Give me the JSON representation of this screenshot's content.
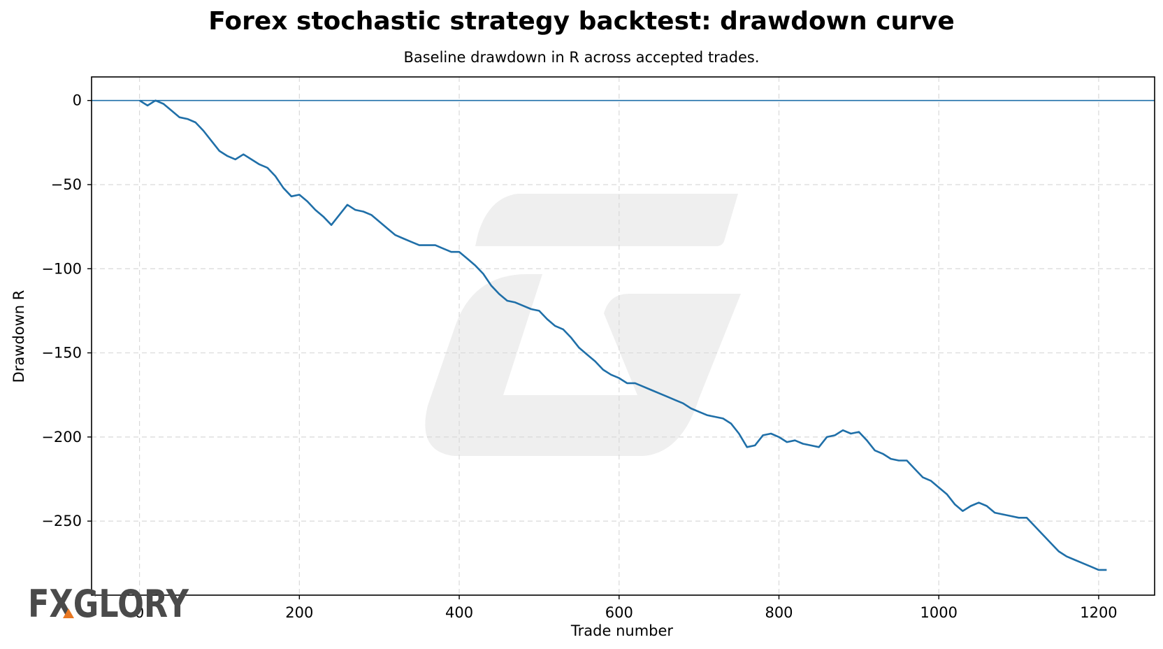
{
  "chart_data": {
    "type": "line",
    "title": "Forex stochastic strategy backtest: drawdown curve",
    "subtitle": "Baseline drawdown in R across accepted trades.",
    "xlabel": "Trade number",
    "ylabel": "Drawdown R",
    "xlim": [
      -60,
      1270
    ],
    "ylim": [
      -294,
      14
    ],
    "xticks": [
      0,
      200,
      400,
      600,
      800,
      1000,
      1200
    ],
    "yticks": [
      0,
      -50,
      -100,
      -150,
      -200,
      -250
    ],
    "ytick_labels": [
      "0",
      "−50",
      "−100",
      "−150",
      "−200",
      "−250"
    ],
    "grid": true,
    "hline_y": 0,
    "colors": {
      "series": "#1f6fa8",
      "grid": "#d9d9d9"
    },
    "series": [
      {
        "x": [
          0,
          10,
          20,
          30,
          40,
          50,
          60,
          70,
          80,
          90,
          100,
          110,
          120,
          130,
          140,
          150,
          160,
          170,
          180,
          190,
          200,
          210,
          220,
          230,
          240,
          250,
          260,
          270,
          280,
          290,
          300,
          310,
          320,
          330,
          340,
          350,
          360,
          370,
          380,
          390,
          400,
          410,
          420,
          430,
          440,
          450,
          460,
          470,
          480,
          490,
          500,
          510,
          520,
          530,
          540,
          550,
          560,
          570,
          580,
          590,
          600,
          610,
          620,
          630,
          640,
          650,
          660,
          670,
          680,
          690,
          700,
          710,
          720,
          730,
          740,
          750,
          760,
          770,
          780,
          790,
          800,
          810,
          820,
          830,
          840,
          850,
          860,
          870,
          880,
          890,
          900,
          910,
          920,
          930,
          940,
          950,
          960,
          970,
          980,
          990,
          1000,
          1010,
          1020,
          1030,
          1040,
          1050,
          1060,
          1070,
          1080,
          1090,
          1100,
          1110,
          1120,
          1130,
          1140,
          1150,
          1160,
          1170,
          1180,
          1190,
          1200,
          1210
        ],
        "y": [
          0,
          -3,
          0,
          -2,
          -6,
          -10,
          -11,
          -13,
          -18,
          -24,
          -30,
          -33,
          -35,
          -32,
          -35,
          -38,
          -40,
          -45,
          -52,
          -57,
          -56,
          -60,
          -65,
          -69,
          -74,
          -68,
          -62,
          -65,
          -66,
          -68,
          -72,
          -76,
          -80,
          -82,
          -84,
          -86,
          -86,
          -86,
          -88,
          -90,
          -90,
          -94,
          -98,
          -103,
          -110,
          -115,
          -119,
          -120,
          -122,
          -124,
          -125,
          -130,
          -134,
          -136,
          -141,
          -147,
          -151,
          -155,
          -160,
          -163,
          -165,
          -168,
          -168,
          -170,
          -172,
          -174,
          -176,
          -178,
          -180,
          -183,
          -185,
          -187,
          -188,
          -189,
          -192,
          -198,
          -206,
          -205,
          -199,
          -198,
          -200,
          -203,
          -202,
          -204,
          -205,
          -206,
          -200,
          -199,
          -196,
          -198,
          -197,
          -202,
          -208,
          -210,
          -213,
          -214,
          -214,
          -219,
          -224,
          -226,
          -230,
          -234,
          -240,
          -244,
          -241,
          -239,
          -241,
          -245,
          -246,
          -247,
          -248,
          -248,
          -253,
          -258,
          -263,
          -268,
          -271,
          -273,
          -275,
          -277,
          -279,
          -279
        ]
      }
    ]
  },
  "watermark": {
    "brand_text": "FXGLORY",
    "accent_color": "#e87722"
  }
}
